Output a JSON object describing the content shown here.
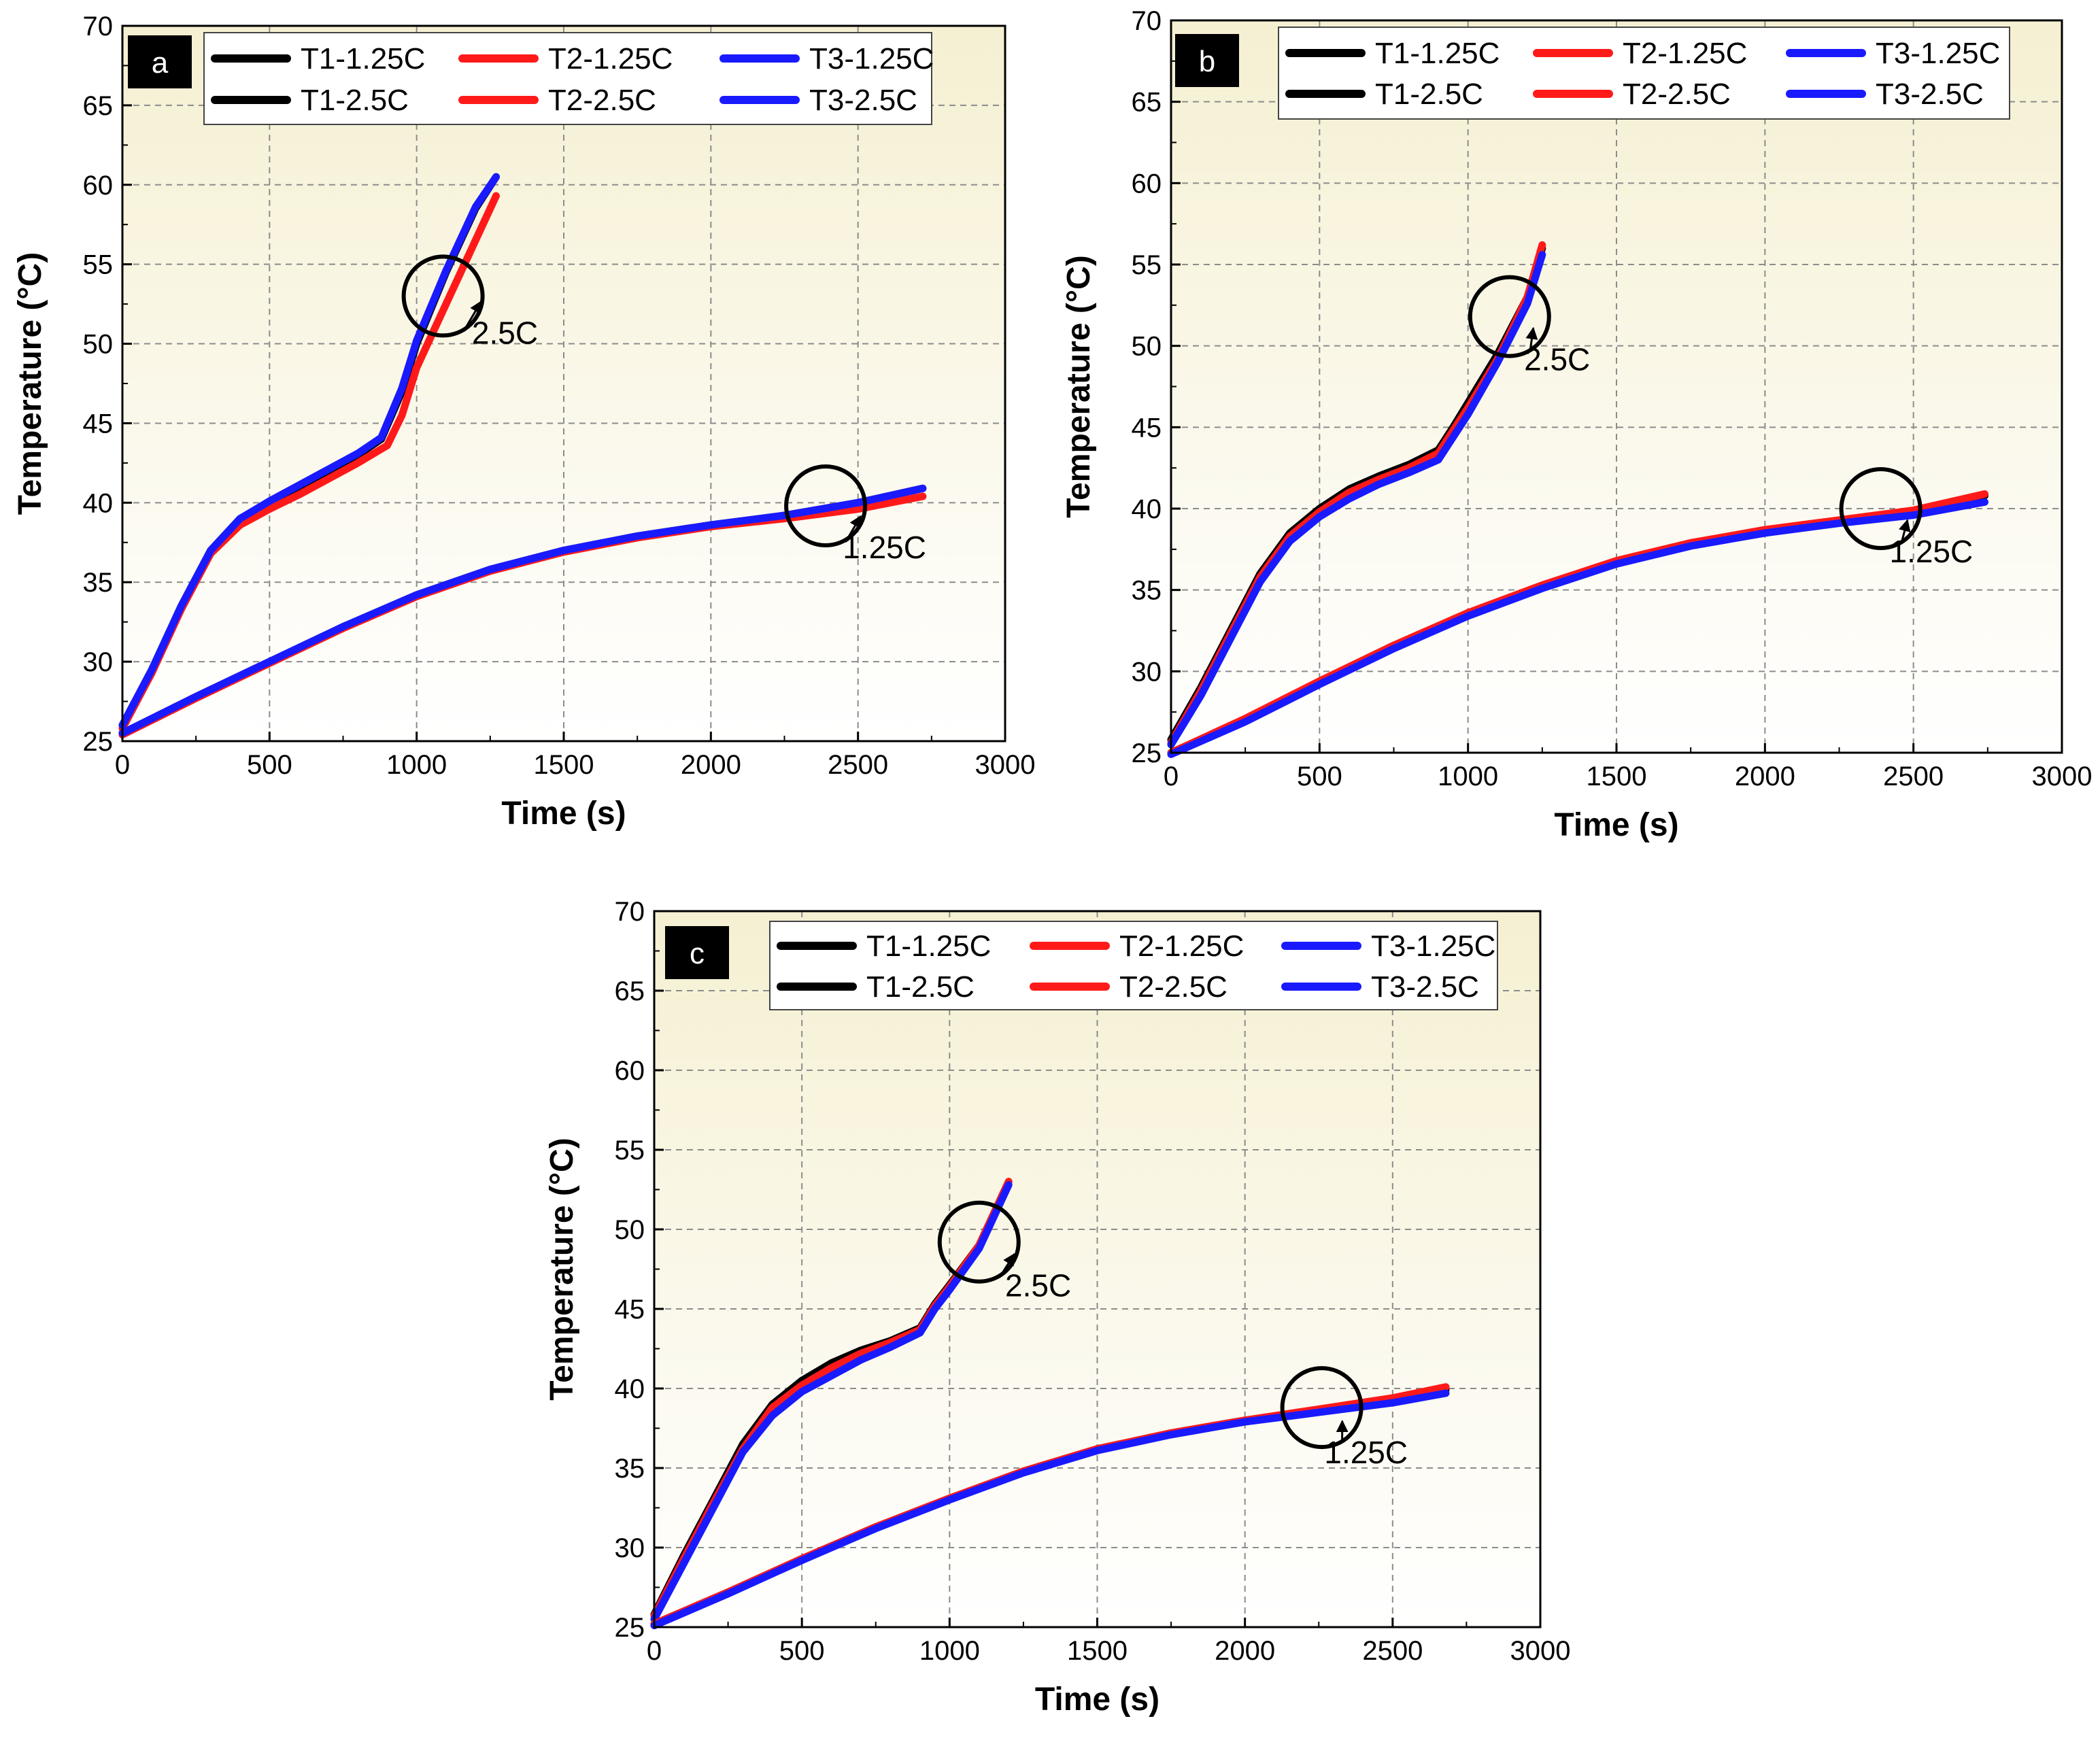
{
  "colors": {
    "T1": "#000000",
    "T2": "#ff1a1a",
    "T3": "#1a1aff",
    "grid": "#8c8c8c",
    "bg_top": "#f5f0d2",
    "bg_bottom": "#ffffff"
  },
  "chart_data": [
    {
      "type": "line",
      "panel_label": "a",
      "xlabel": "Time (s)",
      "ylabel": "Temperature (°C)",
      "xlim": [
        0,
        3000
      ],
      "ylim": [
        25,
        70
      ],
      "xticks": [
        "0",
        "500",
        "1000",
        "1500",
        "2000",
        "2500",
        "3000"
      ],
      "yticks": [
        "25",
        "30",
        "35",
        "40",
        "45",
        "50",
        "55",
        "60",
        "65",
        "70"
      ],
      "legend": [
        "T1-1.25C",
        "T2-1.25C",
        "T3-1.25C",
        "T1-2.5C",
        "T2-2.5C",
        "T3-2.5C"
      ],
      "annotations": [
        {
          "text": "2.5C",
          "circle_at": [
            1090,
            53
          ],
          "label_at": [
            1300,
            50
          ]
        },
        {
          "text": "1.25C",
          "circle_at": [
            2390,
            39.8
          ],
          "label_at": [
            2590,
            36.5
          ]
        }
      ],
      "series": [
        {
          "name": "T1-2.5C",
          "color_key": "T1",
          "x": [
            0,
            100,
            200,
            300,
            400,
            500,
            600,
            700,
            800,
            880,
            950,
            1000,
            1100,
            1200,
            1270
          ],
          "y": [
            26,
            29.5,
            33.5,
            37,
            39,
            40,
            41,
            42,
            43,
            44,
            47,
            50,
            54.5,
            58.5,
            60.5
          ]
        },
        {
          "name": "T2-2.5C",
          "color_key": "T2",
          "x": [
            0,
            100,
            200,
            300,
            400,
            500,
            600,
            700,
            800,
            900,
            950,
            1000,
            1100,
            1200,
            1270
          ],
          "y": [
            25.8,
            29.3,
            33.3,
            36.8,
            38.6,
            39.6,
            40.5,
            41.5,
            42.5,
            43.6,
            45.5,
            48.5,
            52.5,
            56.5,
            59.3
          ]
        },
        {
          "name": "T3-2.5C",
          "color_key": "T3",
          "x": [
            0,
            100,
            200,
            300,
            400,
            500,
            600,
            700,
            800,
            880,
            950,
            1000,
            1100,
            1200,
            1270
          ],
          "y": [
            26,
            29.5,
            33.5,
            37,
            39,
            40.1,
            41.1,
            42.1,
            43.1,
            44.1,
            47.2,
            50.2,
            54.6,
            58.6,
            60.5
          ]
        },
        {
          "name": "T1-1.25C",
          "color_key": "T1",
          "x": [
            0,
            250,
            500,
            750,
            1000,
            1250,
            1500,
            1750,
            2000,
            2250,
            2500,
            2720
          ],
          "y": [
            25.5,
            27.8,
            30,
            32.2,
            34.2,
            35.8,
            37,
            37.9,
            38.6,
            39.2,
            40,
            40.9
          ]
        },
        {
          "name": "T2-1.25C",
          "color_key": "T2",
          "x": [
            0,
            250,
            500,
            750,
            1000,
            1250,
            1500,
            1750,
            2000,
            2250,
            2500,
            2720
          ],
          "y": [
            25.4,
            27.7,
            29.9,
            32.1,
            34.1,
            35.7,
            36.9,
            37.8,
            38.5,
            39,
            39.6,
            40.4
          ]
        },
        {
          "name": "T3-1.25C",
          "color_key": "T3",
          "x": [
            0,
            250,
            500,
            750,
            1000,
            1250,
            1500,
            1750,
            2000,
            2250,
            2500,
            2720
          ],
          "y": [
            25.5,
            27.8,
            30,
            32.2,
            34.2,
            35.8,
            37,
            37.9,
            38.6,
            39.2,
            40,
            40.9
          ]
        }
      ]
    },
    {
      "type": "line",
      "panel_label": "b",
      "xlabel": "Time (s)",
      "ylabel": "Temperature (°C)",
      "xlim": [
        0,
        3000
      ],
      "ylim": [
        25,
        70
      ],
      "xticks": [
        "0",
        "500",
        "1000",
        "1500",
        "2000",
        "2500",
        "3000"
      ],
      "yticks": [
        "25",
        "30",
        "35",
        "40",
        "45",
        "50",
        "55",
        "60",
        "65",
        "70"
      ],
      "legend": [
        "T1-1.25C",
        "T2-1.25C",
        "T3-1.25C",
        "T1-2.5C",
        "T2-2.5C",
        "T3-2.5C"
      ],
      "annotations": [
        {
          "text": "2.5C",
          "circle_at": [
            1140,
            51.8
          ],
          "label_at": [
            1300,
            48.5
          ]
        },
        {
          "text": "1.25C",
          "circle_at": [
            2390,
            40
          ],
          "label_at": [
            2560,
            36.7
          ]
        }
      ],
      "series": [
        {
          "name": "T1-2.5C",
          "color_key": "T1",
          "x": [
            0,
            100,
            200,
            300,
            400,
            500,
            600,
            700,
            800,
            900,
            950,
            1000,
            1100,
            1200,
            1250
          ],
          "y": [
            25.8,
            29,
            32.5,
            36,
            38.5,
            40,
            41.2,
            42,
            42.7,
            43.6,
            45,
            46.5,
            49.5,
            53,
            56
          ]
        },
        {
          "name": "T2-2.5C",
          "color_key": "T2",
          "x": [
            0,
            100,
            200,
            300,
            400,
            500,
            600,
            700,
            800,
            900,
            950,
            1000,
            1100,
            1200,
            1250
          ],
          "y": [
            25.6,
            28.8,
            32.3,
            35.8,
            38.3,
            39.8,
            41,
            41.8,
            42.5,
            43.4,
            44.8,
            46.2,
            49.2,
            53,
            56.2
          ]
        },
        {
          "name": "T3-2.5C",
          "color_key": "T3",
          "x": [
            0,
            100,
            200,
            300,
            400,
            500,
            600,
            700,
            800,
            900,
            950,
            1000,
            1100,
            1200,
            1250
          ],
          "y": [
            25.5,
            28.5,
            32,
            35.5,
            38,
            39.5,
            40.6,
            41.5,
            42.2,
            43,
            44.4,
            45.8,
            49,
            52.6,
            55.6
          ]
        },
        {
          "name": "T1-1.25C",
          "color_key": "T1",
          "x": [
            0,
            250,
            500,
            750,
            1000,
            1250,
            1500,
            1750,
            2000,
            2250,
            2500,
            2740
          ],
          "y": [
            25,
            27,
            29.3,
            31.5,
            33.5,
            35.2,
            36.7,
            37.8,
            38.6,
            39.2,
            39.8,
            40.8
          ]
        },
        {
          "name": "T2-1.25C",
          "color_key": "T2",
          "x": [
            0,
            250,
            500,
            750,
            1000,
            1250,
            1500,
            1750,
            2000,
            2250,
            2500,
            2740
          ],
          "y": [
            25,
            27.1,
            29.4,
            31.6,
            33.6,
            35.3,
            36.8,
            37.9,
            38.7,
            39.3,
            39.9,
            40.9
          ]
        },
        {
          "name": "T3-1.25C",
          "color_key": "T3",
          "x": [
            0,
            250,
            500,
            750,
            1000,
            1250,
            1500,
            1750,
            2000,
            2250,
            2500,
            2740
          ],
          "y": [
            24.9,
            26.9,
            29.2,
            31.4,
            33.4,
            35.1,
            36.6,
            37.7,
            38.5,
            39.1,
            39.6,
            40.4
          ]
        }
      ]
    },
    {
      "type": "line",
      "panel_label": "c",
      "xlabel": "Time (s)",
      "ylabel": "Temperature (°C)",
      "xlim": [
        0,
        3000
      ],
      "ylim": [
        25,
        70
      ],
      "xticks": [
        "0",
        "500",
        "1000",
        "1500",
        "2000",
        "2500",
        "3000"
      ],
      "yticks": [
        "25",
        "30",
        "35",
        "40",
        "45",
        "50",
        "55",
        "60",
        "65",
        "70"
      ],
      "legend": [
        "T1-1.25C",
        "T2-1.25C",
        "T3-1.25C",
        "T1-2.5C",
        "T2-2.5C",
        "T3-2.5C"
      ],
      "annotations": [
        {
          "text": "2.5C",
          "circle_at": [
            1100,
            49.2
          ],
          "label_at": [
            1300,
            45.8
          ]
        },
        {
          "text": "1.25C",
          "circle_at": [
            2260,
            38.8
          ],
          "label_at": [
            2410,
            35.3
          ]
        }
      ],
      "series": [
        {
          "name": "T1-2.5C",
          "color_key": "T1",
          "x": [
            0,
            100,
            200,
            300,
            400,
            500,
            600,
            700,
            800,
            900,
            950,
            1000,
            1100,
            1200
          ],
          "y": [
            25.8,
            29.5,
            33,
            36.5,
            39,
            40.5,
            41.6,
            42.4,
            43,
            43.8,
            45.3,
            46.5,
            49,
            53
          ]
        },
        {
          "name": "T2-2.5C",
          "color_key": "T2",
          "x": [
            0,
            100,
            200,
            300,
            400,
            500,
            600,
            700,
            800,
            900,
            950,
            1000,
            1100,
            1200
          ],
          "y": [
            25.7,
            29.3,
            32.8,
            36.2,
            38.8,
            40.2,
            41.3,
            42.2,
            42.9,
            43.7,
            45.2,
            46.4,
            49,
            53
          ]
        },
        {
          "name": "T3-2.5C",
          "color_key": "T3",
          "x": [
            0,
            100,
            200,
            300,
            400,
            500,
            600,
            700,
            800,
            900,
            950,
            1000,
            1100,
            1200
          ],
          "y": [
            25.5,
            29,
            32.5,
            36,
            38.3,
            39.8,
            40.8,
            41.8,
            42.6,
            43.5,
            45,
            46.2,
            48.8,
            52.8
          ]
        },
        {
          "name": "T1-1.25C",
          "color_key": "T1",
          "x": [
            0,
            250,
            500,
            750,
            1000,
            1250,
            1500,
            1750,
            2000,
            2250,
            2500,
            2680
          ],
          "y": [
            25.2,
            27.2,
            29.3,
            31.3,
            33.1,
            34.8,
            36.2,
            37.2,
            38,
            38.6,
            39.3,
            39.9
          ]
        },
        {
          "name": "T2-1.25C",
          "color_key": "T2",
          "x": [
            0,
            250,
            500,
            750,
            1000,
            1250,
            1500,
            1750,
            2000,
            2250,
            2500,
            2680
          ],
          "y": [
            25.2,
            27.2,
            29.3,
            31.3,
            33.1,
            34.8,
            36.2,
            37.2,
            38,
            38.7,
            39.4,
            40.1
          ]
        },
        {
          "name": "T3-1.25C",
          "color_key": "T3",
          "x": [
            0,
            250,
            500,
            750,
            1000,
            1250,
            1500,
            1750,
            2000,
            2250,
            2500,
            2680
          ],
          "y": [
            25.1,
            27.1,
            29.2,
            31.2,
            33,
            34.7,
            36.1,
            37.1,
            37.9,
            38.5,
            39.1,
            39.7
          ]
        }
      ]
    }
  ]
}
